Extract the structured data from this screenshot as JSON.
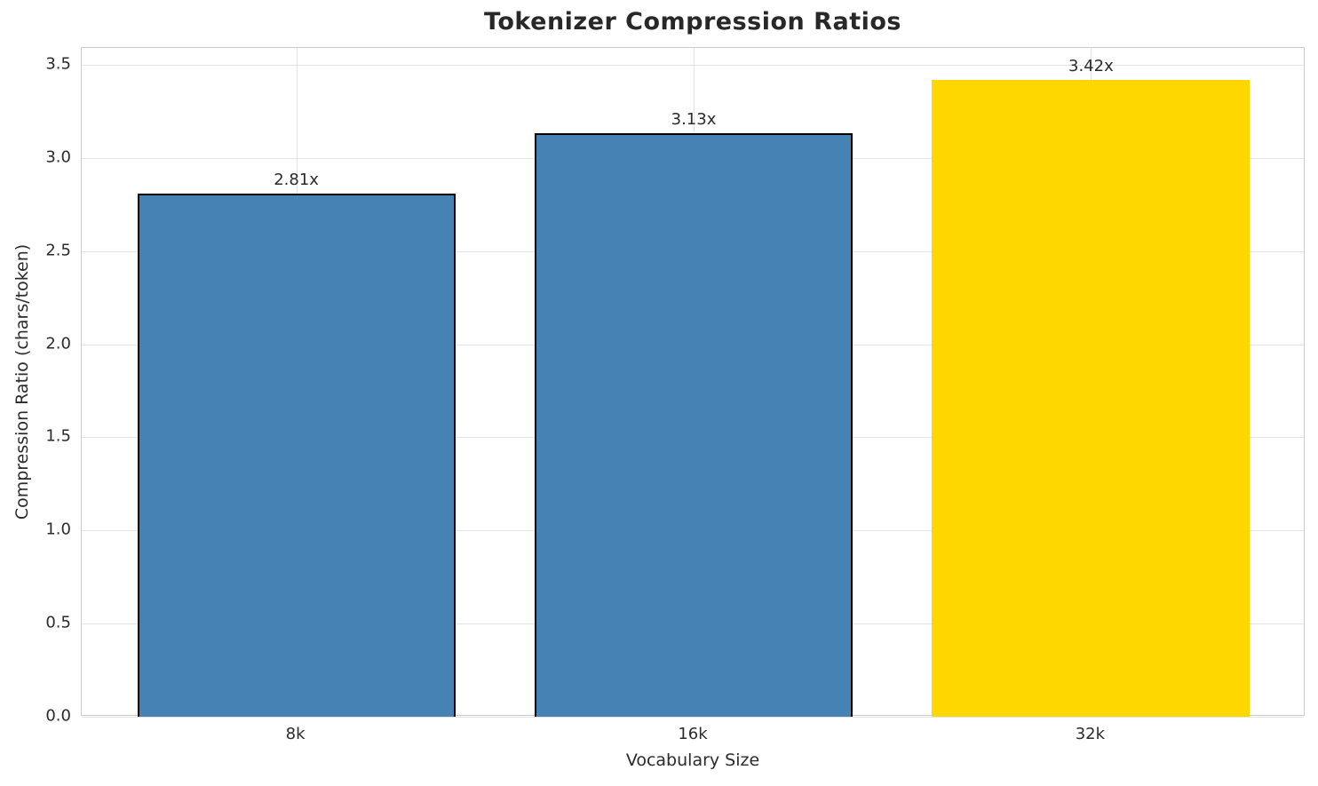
{
  "chart_data": {
    "type": "bar",
    "title": "Tokenizer Compression Ratios",
    "xlabel": "Vocabulary Size",
    "ylabel": "Compression Ratio (chars/token)",
    "categories": [
      "8k",
      "16k",
      "32k"
    ],
    "values": [
      2.81,
      3.13,
      3.42
    ],
    "value_labels": [
      "2.81x",
      "3.13x",
      "3.42x"
    ],
    "bar_colors": [
      "#4682b4",
      "#4682b4",
      "#ffd700"
    ],
    "bar_edge_colors": [
      "#000000",
      "#000000",
      "#ffd700"
    ],
    "yticks": [
      0.0,
      0.5,
      1.0,
      1.5,
      2.0,
      2.5,
      3.0,
      3.5
    ],
    "ytick_labels": [
      "0.0",
      "0.5",
      "1.0",
      "1.5",
      "2.0",
      "2.5",
      "3.0",
      "3.5"
    ],
    "ylim": [
      0,
      3.59
    ],
    "xlim": [
      -0.54,
      2.54
    ],
    "bar_width": 0.8,
    "grid": true,
    "legend": null,
    "colors": {
      "background": "#ffffff",
      "grid": "#e4e4e4",
      "spine": "#cccccc",
      "text": "#2b2b2b",
      "highlight": "#ffd700",
      "primary": "#4682b4"
    }
  }
}
